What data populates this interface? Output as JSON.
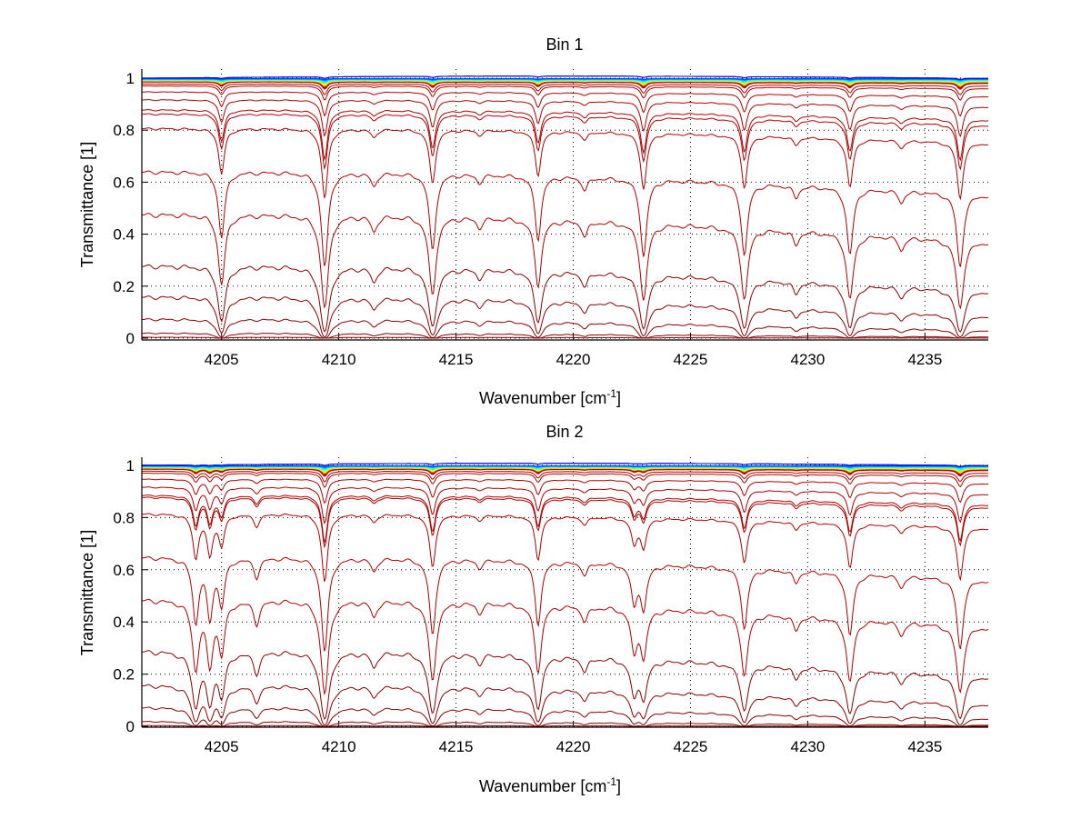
{
  "chart_data": [
    {
      "type": "line",
      "title": "Bin 1",
      "xlabel": "Wavenumber [cm",
      "xlabel_sup": "-1",
      "xlabel_end": "]",
      "ylabel": "Transmittance [1]",
      "xlim": [
        4201.6,
        4237.7
      ],
      "ylim": [
        -0.007,
        1.035
      ],
      "xticks": [
        4205,
        4210,
        4215,
        4220,
        4225,
        4230,
        4235
      ],
      "yticks": [
        0,
        0.2,
        0.4,
        0.6,
        0.8,
        1
      ],
      "ytick_labels": [
        "0",
        "0.2",
        "0.4",
        "0.6",
        "0.8",
        "1"
      ],
      "grid": true,
      "absorption_lines": [
        [
          4205.0,
          0.6
        ],
        [
          4209.4,
          1.0
        ],
        [
          4211.5,
          0.1
        ],
        [
          4214.0,
          0.75
        ],
        [
          4216.0,
          0.06
        ],
        [
          4218.5,
          0.6
        ],
        [
          4220.5,
          0.1
        ],
        [
          4223.0,
          0.8
        ],
        [
          4227.3,
          0.75
        ],
        [
          4229.5,
          0.1
        ],
        [
          4231.8,
          0.7
        ],
        [
          4234.0,
          0.1
        ],
        [
          4236.5,
          0.85
        ]
      ],
      "series_right_edge_values": [
        1.0,
        0.999,
        0.998,
        0.997,
        0.996,
        0.995,
        0.994,
        0.993,
        0.992,
        0.991,
        0.99,
        0.989,
        0.988,
        0.987,
        0.986,
        0.985,
        0.984,
        0.983,
        0.982,
        0.98,
        0.97,
        0.96,
        0.93,
        0.89,
        0.84,
        0.82,
        0.75,
        0.55,
        0.37,
        0.18,
        0.085,
        0.03,
        0.005,
        0.0005
      ]
    },
    {
      "type": "line",
      "title": "Bin 2",
      "xlabel": "Wavenumber [cm",
      "xlabel_sup": "-1",
      "xlabel_end": "]",
      "ylabel": "Transmittance [1]",
      "xlim": [
        4201.6,
        4237.7
      ],
      "ylim": [
        -0.003,
        1.031
      ],
      "xticks": [
        4205,
        4210,
        4215,
        4220,
        4225,
        4230,
        4235
      ],
      "yticks": [
        0,
        0.2,
        0.4,
        0.6,
        0.8,
        1
      ],
      "ytick_labels": [
        "0",
        "0.2",
        "0.4",
        "0.6",
        "0.8",
        "1"
      ],
      "grid": true,
      "absorption_lines": [
        [
          4203.9,
          0.6
        ],
        [
          4204.5,
          0.55
        ],
        [
          4205.0,
          0.4
        ],
        [
          4206.5,
          0.15
        ],
        [
          4209.4,
          1.0
        ],
        [
          4211.5,
          0.1
        ],
        [
          4214.0,
          0.75
        ],
        [
          4216.0,
          0.06
        ],
        [
          4218.5,
          0.6
        ],
        [
          4220.5,
          0.1
        ],
        [
          4222.6,
          0.35
        ],
        [
          4223.0,
          0.4
        ],
        [
          4227.3,
          0.6
        ],
        [
          4229.5,
          0.1
        ],
        [
          4231.8,
          0.65
        ],
        [
          4234.0,
          0.1
        ],
        [
          4236.5,
          0.8
        ]
      ],
      "series_right_edge_values": [
        1.0,
        0.999,
        0.998,
        0.997,
        0.996,
        0.995,
        0.994,
        0.993,
        0.992,
        0.991,
        0.99,
        0.989,
        0.988,
        0.987,
        0.986,
        0.985,
        0.984,
        0.983,
        0.982,
        0.98,
        0.97,
        0.96,
        0.93,
        0.89,
        0.85,
        0.84,
        0.76,
        0.56,
        0.38,
        0.19,
        0.085,
        0.03,
        0.005,
        0.0005
      ]
    }
  ]
}
